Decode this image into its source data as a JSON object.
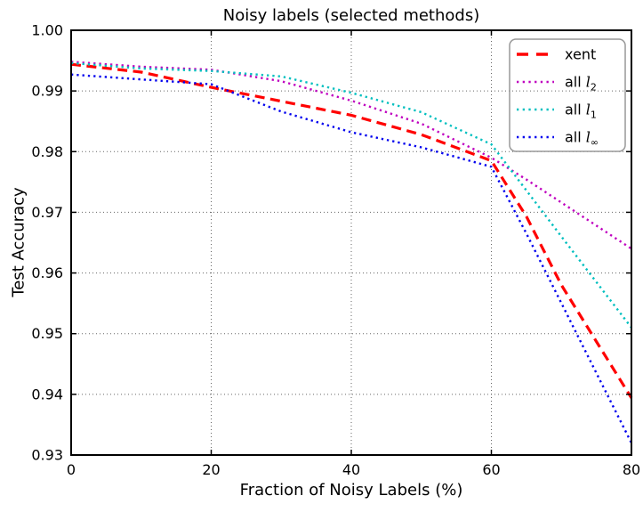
{
  "figure": {
    "title": "Noisy labels (selected methods)",
    "xlabel": "Fraction of Noisy Labels (%)",
    "ylabel": "Test Accuracy",
    "background_color": "#ffffff",
    "spine_color": "#000000",
    "grid_color": "#666666",
    "legend_border_color": "#999999"
  },
  "chart_data": {
    "type": "line",
    "title": "Noisy labels (selected methods)",
    "xlabel": "Fraction of Noisy Labels (%)",
    "ylabel": "Test Accuracy",
    "xlim": [
      0,
      80
    ],
    "ylim": [
      0.93,
      1.0
    ],
    "xticks": [
      0,
      20,
      40,
      60,
      80
    ],
    "xtick_labels": [
      "0",
      "20",
      "40",
      "60",
      "80"
    ],
    "yticks": [
      0.93,
      0.94,
      0.95,
      0.96,
      0.97,
      0.98,
      0.99,
      1.0
    ],
    "ytick_labels": [
      "0.93",
      "0.94",
      "0.95",
      "0.96",
      "0.97",
      "0.98",
      "0.99",
      "1.00"
    ],
    "grid": true,
    "grid_style": "dotted",
    "legend_position": "upper right",
    "x": [
      0,
      10,
      20,
      30,
      40,
      50,
      60,
      65,
      70,
      75,
      80
    ],
    "series": [
      {
        "name": "xent",
        "legend_label": "xent",
        "label_parts": [
          {
            "t": "xent",
            "style": "plain"
          }
        ],
        "color": "#ff0000",
        "linestyle": "dashed",
        "values": [
          0.9944,
          0.9931,
          0.9906,
          0.9883,
          0.986,
          0.9828,
          0.9785,
          0.9693,
          0.958,
          0.9487,
          0.9394
        ]
      },
      {
        "name": "all-l2",
        "legend_label": "all l_2",
        "label_parts": [
          {
            "t": "all ",
            "style": "plain"
          },
          {
            "t": "l",
            "style": "var"
          },
          {
            "t": "2",
            "style": "sub"
          }
        ],
        "color": "#bf00bf",
        "linestyle": "dotted",
        "values": [
          0.9948,
          0.994,
          0.9935,
          0.9916,
          0.9884,
          0.9846,
          0.979,
          0.9754,
          0.9716,
          0.9678,
          0.964
        ]
      },
      {
        "name": "all-l1",
        "legend_label": "all l_1",
        "label_parts": [
          {
            "t": "all ",
            "style": "plain"
          },
          {
            "t": "l",
            "style": "var"
          },
          {
            "t": "1",
            "style": "sub"
          }
        ],
        "color": "#00bfbf",
        "linestyle": "dotted",
        "values": [
          0.9946,
          0.9937,
          0.9933,
          0.9924,
          0.9897,
          0.9865,
          0.9812,
          0.9736,
          0.966,
          0.9585,
          0.951
        ]
      },
      {
        "name": "all-linf",
        "legend_label": "all l_inf",
        "label_parts": [
          {
            "t": "all ",
            "style": "plain"
          },
          {
            "t": "l",
            "style": "var"
          },
          {
            "t": "∞",
            "style": "sub"
          }
        ],
        "color": "#0000ee",
        "linestyle": "dotted",
        "values": [
          0.9927,
          0.9919,
          0.9911,
          0.9866,
          0.9832,
          0.9807,
          0.9775,
          0.9665,
          0.955,
          0.9435,
          0.932
        ]
      }
    ]
  }
}
